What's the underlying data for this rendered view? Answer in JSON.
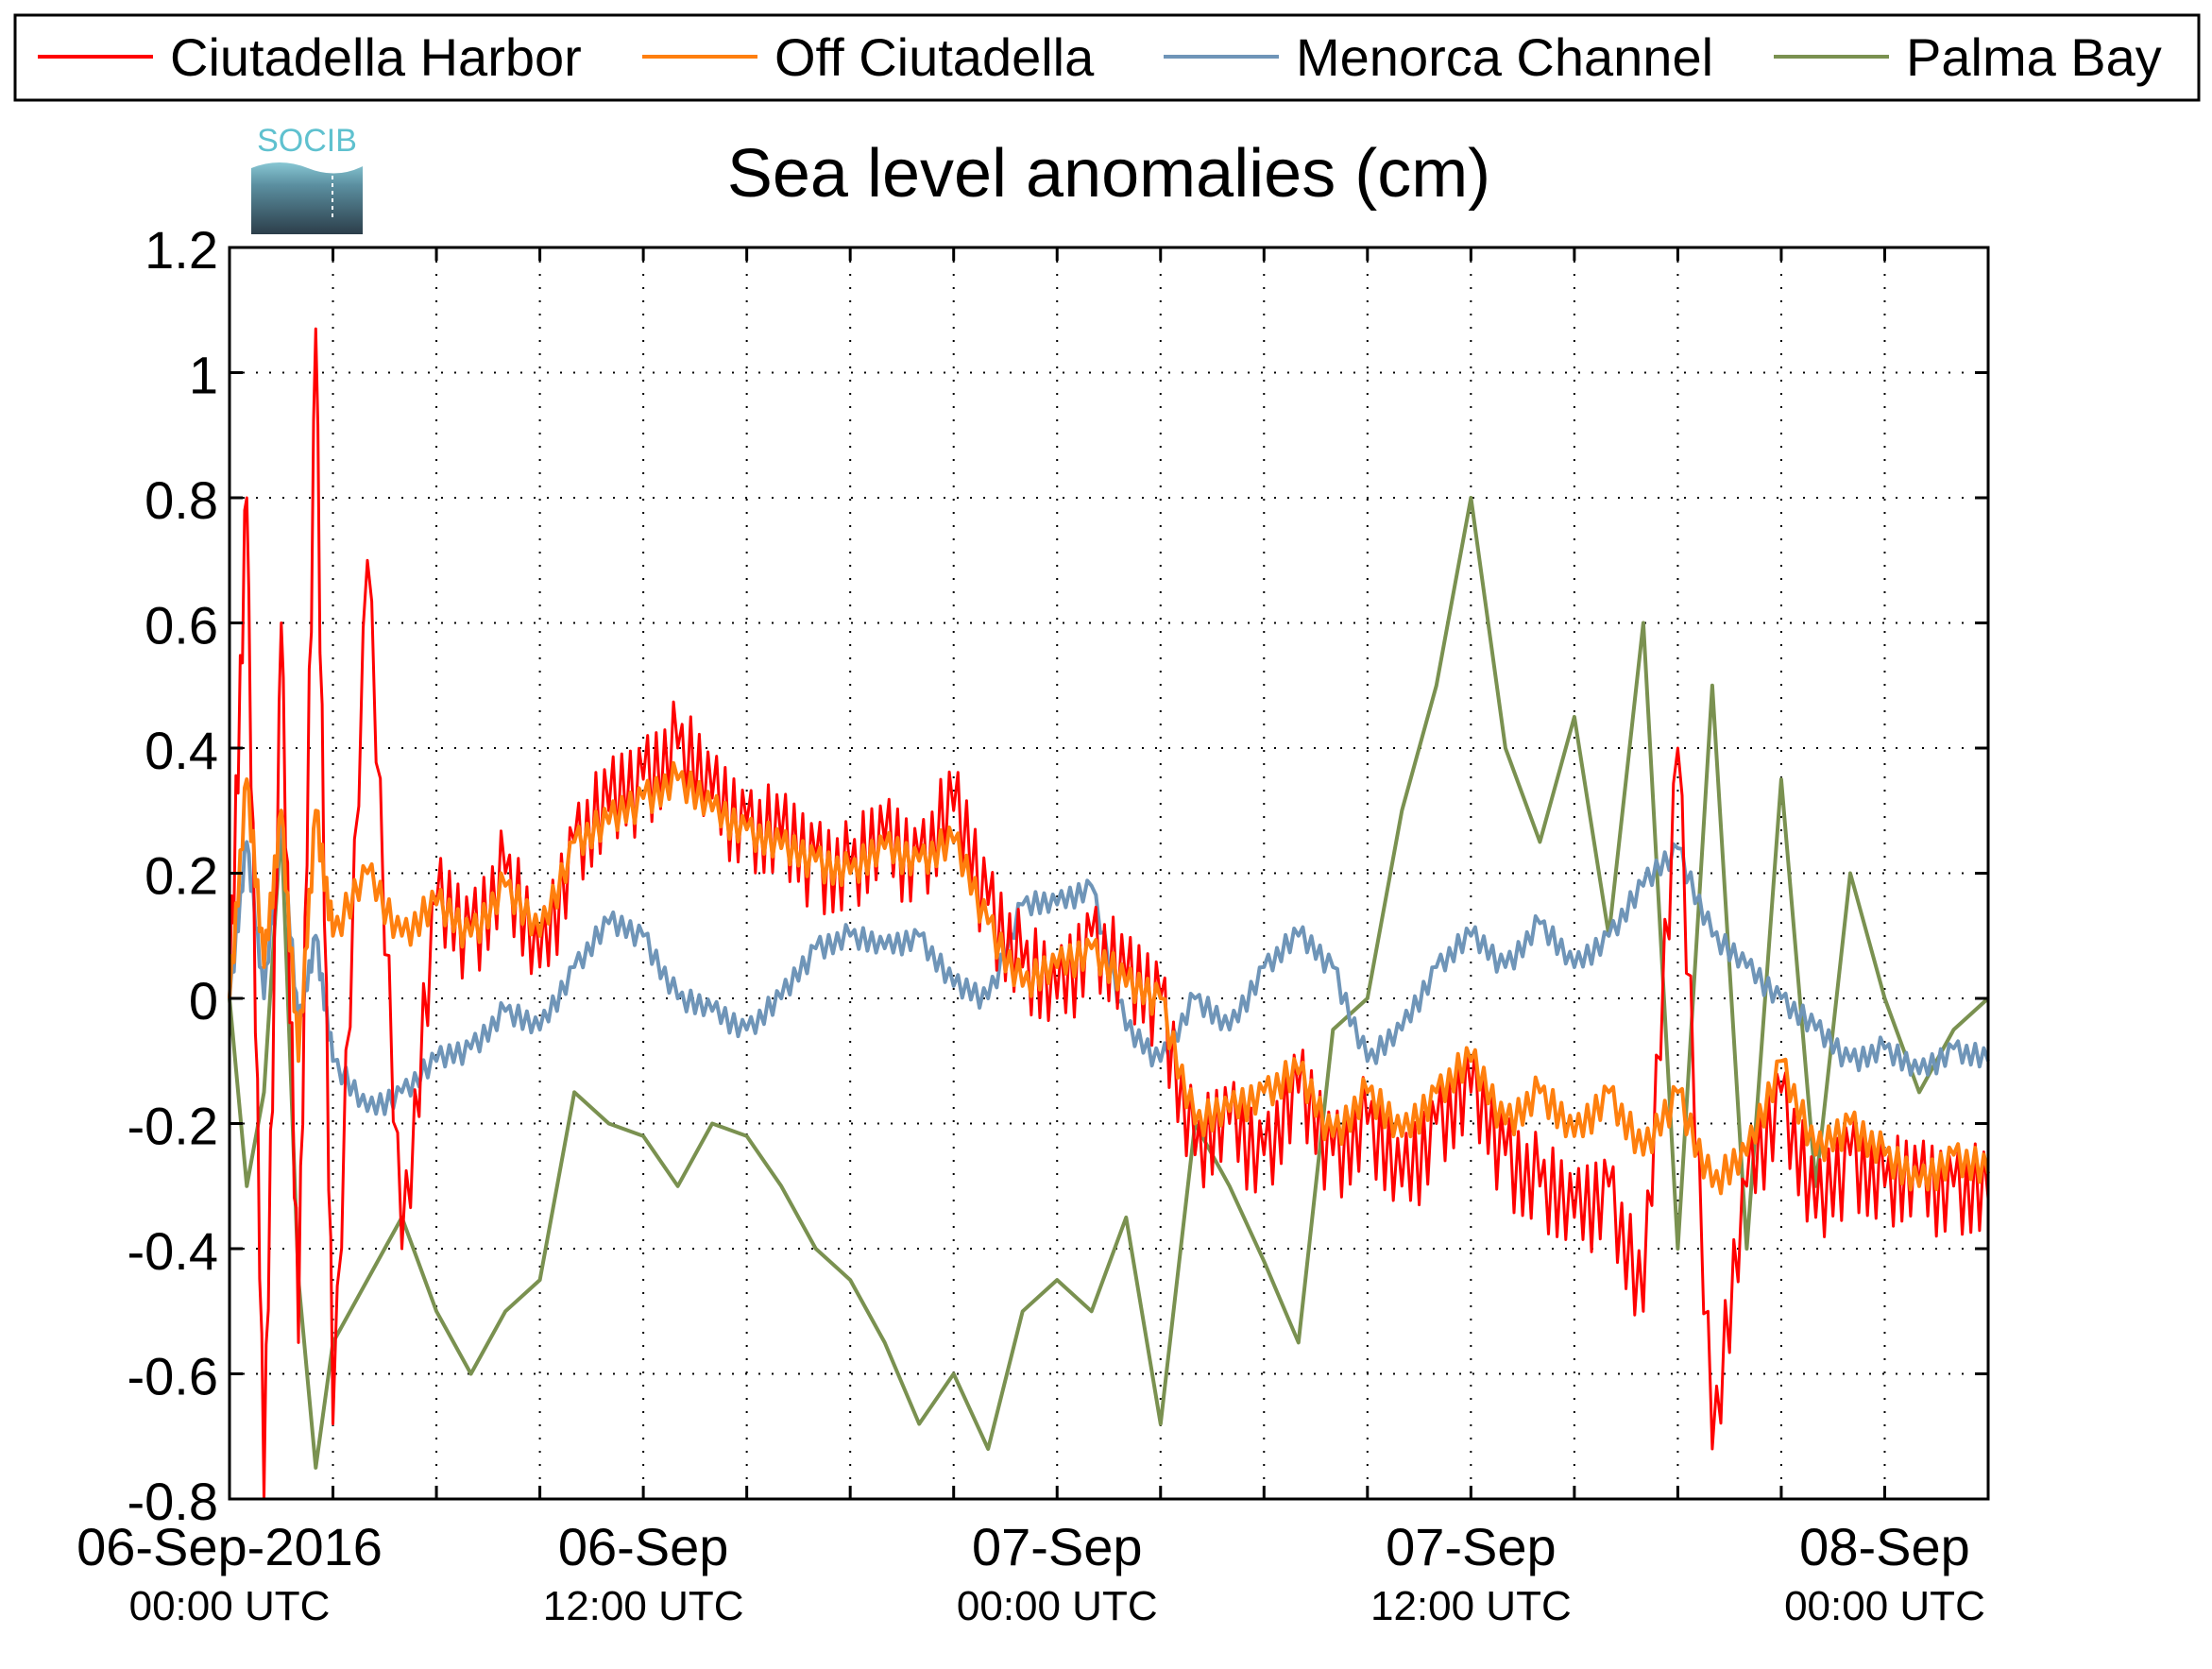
{
  "chart_data": {
    "type": "line",
    "title": "Sea level anomalies (cm)",
    "logo_text": "SOCIB",
    "xlabel": "",
    "ylabel": "",
    "ylim": [
      -0.8,
      1.2
    ],
    "y_ticks": [
      -0.8,
      -0.6,
      -0.4,
      -0.2,
      0,
      0.2,
      0.4,
      0.6,
      0.8,
      1,
      1.2
    ],
    "y_tick_labels": [
      "-0.8",
      "-0.6",
      "-0.4",
      "-0.2",
      "0",
      "0.2",
      "0.4",
      "0.6",
      "0.8",
      "1",
      "1.2"
    ],
    "xlim": [
      "2016-09-06T00:00",
      "2016-09-08T03:00"
    ],
    "x_labels": [
      {
        "x": "2016-09-06T00:00",
        "line1": "06-Sep-2016",
        "line2": "00:00 UTC"
      },
      {
        "x": "2016-09-06T12:00",
        "line1": "06-Sep",
        "line2": "12:00 UTC"
      },
      {
        "x": "2016-09-07T00:00",
        "line1": "07-Sep",
        "line2": "00:00 UTC"
      },
      {
        "x": "2016-09-07T12:00",
        "line1": "07-Sep",
        "line2": "12:00 UTC"
      },
      {
        "x": "2016-09-08T00:00",
        "line1": "08-Sep",
        "line2": "00:00 UTC"
      }
    ],
    "grid": true,
    "legend_position": "top",
    "series": [
      {
        "name": "Ciutadella Harbor",
        "color": "#ff0000",
        "x": [
          "2016-09-06T00:00",
          "2016-09-06T00:30",
          "2016-09-06T01:00",
          "2016-09-06T01:30",
          "2016-09-06T02:00",
          "2016-09-06T02:30",
          "2016-09-06T03:00",
          "2016-09-06T04:00",
          "2016-09-06T05:00",
          "2016-09-06T06:00",
          "2016-09-06T07:00",
          "2016-09-06T08:00",
          "2016-09-06T09:00",
          "2016-09-06T10:00",
          "2016-09-06T11:00",
          "2016-09-06T12:00",
          "2016-09-06T13:00",
          "2016-09-06T14:00",
          "2016-09-06T15:00",
          "2016-09-06T16:00",
          "2016-09-06T17:00",
          "2016-09-06T18:00",
          "2016-09-06T19:00",
          "2016-09-06T20:00",
          "2016-09-06T21:00",
          "2016-09-06T22:00",
          "2016-09-06T23:00",
          "2016-09-07T00:00",
          "2016-09-07T01:00",
          "2016-09-07T02:00",
          "2016-09-07T03:00",
          "2016-09-07T04:00",
          "2016-09-07T05:00",
          "2016-09-07T06:00",
          "2016-09-07T07:00",
          "2016-09-07T08:00",
          "2016-09-07T09:00",
          "2016-09-07T10:00",
          "2016-09-07T11:00",
          "2016-09-07T12:00",
          "2016-09-07T13:00",
          "2016-09-07T14:00",
          "2016-09-07T15:00",
          "2016-09-07T16:00",
          "2016-09-07T17:00",
          "2016-09-07T18:00",
          "2016-09-07T19:00",
          "2016-09-07T20:00",
          "2016-09-07T21:00",
          "2016-09-07T22:00",
          "2016-09-07T23:00",
          "2016-09-08T00:00",
          "2016-09-08T01:00",
          "2016-09-08T02:00",
          "2016-09-08T03:00"
        ],
        "y": [
          0.0,
          0.8,
          -0.8,
          0.6,
          -0.55,
          1.07,
          -0.68,
          0.7,
          -0.4,
          0.15,
          0.1,
          0.2,
          0.05,
          0.25,
          0.3,
          0.35,
          0.4,
          0.32,
          0.28,
          0.25,
          0.22,
          0.2,
          0.25,
          0.22,
          0.3,
          0.15,
          0.05,
          0.0,
          0.1,
          0.02,
          0.0,
          -0.25,
          -0.2,
          -0.25,
          -0.15,
          -0.25,
          -0.2,
          -0.3,
          -0.2,
          -0.15,
          -0.25,
          -0.3,
          -0.35,
          -0.3,
          -0.5,
          0.4,
          -0.72,
          -0.3,
          -0.15,
          -0.35,
          -0.25,
          -0.3,
          -0.3,
          -0.3,
          -0.32
        ],
        "oscillation": 0.08
      },
      {
        "name": "Off Ciutadella",
        "color": "#ff7f0e",
        "x": [
          "2016-09-06T00:00",
          "2016-09-06T00:30",
          "2016-09-06T01:00",
          "2016-09-06T01:30",
          "2016-09-06T02:00",
          "2016-09-06T02:30",
          "2016-09-06T03:00",
          "2016-09-06T04:00",
          "2016-09-06T05:00",
          "2016-09-06T06:00",
          "2016-09-06T07:00",
          "2016-09-06T08:00",
          "2016-09-06T09:00",
          "2016-09-06T10:00",
          "2016-09-06T11:00",
          "2016-09-06T12:00",
          "2016-09-06T13:00",
          "2016-09-06T14:00",
          "2016-09-06T15:00",
          "2016-09-06T16:00",
          "2016-09-06T17:00",
          "2016-09-06T18:00",
          "2016-09-06T19:00",
          "2016-09-06T20:00",
          "2016-09-06T21:00",
          "2016-09-06T22:00",
          "2016-09-06T23:00",
          "2016-09-07T00:00",
          "2016-09-07T01:00",
          "2016-09-07T02:00",
          "2016-09-07T03:00",
          "2016-09-07T04:00",
          "2016-09-07T05:00",
          "2016-09-07T06:00",
          "2016-09-07T07:00",
          "2016-09-07T08:00",
          "2016-09-07T09:00",
          "2016-09-07T10:00",
          "2016-09-07T11:00",
          "2016-09-07T12:00",
          "2016-09-07T13:00",
          "2016-09-07T14:00",
          "2016-09-07T15:00",
          "2016-09-07T16:00",
          "2016-09-07T17:00",
          "2016-09-07T18:00",
          "2016-09-07T19:00",
          "2016-09-07T20:00",
          "2016-09-07T21:00",
          "2016-09-07T22:00",
          "2016-09-07T23:00",
          "2016-09-08T00:00",
          "2016-09-08T01:00",
          "2016-09-08T02:00",
          "2016-09-08T03:00"
        ],
        "y": [
          0.0,
          0.35,
          0.05,
          0.3,
          -0.1,
          0.3,
          0.1,
          0.2,
          0.1,
          0.15,
          0.1,
          0.18,
          0.1,
          0.25,
          0.28,
          0.32,
          0.35,
          0.3,
          0.27,
          0.24,
          0.22,
          0.2,
          0.24,
          0.22,
          0.25,
          0.12,
          0.02,
          0.05,
          0.08,
          0.02,
          0.0,
          -0.2,
          -0.18,
          -0.15,
          -0.12,
          -0.22,
          -0.15,
          -0.22,
          -0.15,
          -0.1,
          -0.2,
          -0.15,
          -0.22,
          -0.15,
          -0.25,
          -0.15,
          -0.3,
          -0.25,
          -0.1,
          -0.25,
          -0.2,
          -0.25,
          -0.3,
          -0.25,
          -0.28
        ],
        "oscillation": 0.03
      },
      {
        "name": "Menorca Channel",
        "color": "#6f95b8",
        "x": [
          "2016-09-06T00:00",
          "2016-09-06T00:30",
          "2016-09-06T01:00",
          "2016-09-06T01:30",
          "2016-09-06T02:00",
          "2016-09-06T02:30",
          "2016-09-06T03:00",
          "2016-09-06T04:00",
          "2016-09-06T05:00",
          "2016-09-06T06:00",
          "2016-09-06T07:00",
          "2016-09-06T08:00",
          "2016-09-06T09:00",
          "2016-09-06T10:00",
          "2016-09-06T11:00",
          "2016-09-06T12:00",
          "2016-09-06T13:00",
          "2016-09-06T14:00",
          "2016-09-06T15:00",
          "2016-09-06T16:00",
          "2016-09-06T17:00",
          "2016-09-06T18:00",
          "2016-09-06T19:00",
          "2016-09-06T20:00",
          "2016-09-06T21:00",
          "2016-09-06T22:00",
          "2016-09-06T23:00",
          "2016-09-07T00:00",
          "2016-09-07T01:00",
          "2016-09-07T02:00",
          "2016-09-07T03:00",
          "2016-09-07T04:00",
          "2016-09-07T05:00",
          "2016-09-07T06:00",
          "2016-09-07T07:00",
          "2016-09-07T08:00",
          "2016-09-07T09:00",
          "2016-09-07T10:00",
          "2016-09-07T11:00",
          "2016-09-07T12:00",
          "2016-09-07T13:00",
          "2016-09-07T14:00",
          "2016-09-07T15:00",
          "2016-09-07T16:00",
          "2016-09-07T17:00",
          "2016-09-07T18:00",
          "2016-09-07T19:00",
          "2016-09-07T20:00",
          "2016-09-07T21:00",
          "2016-09-07T22:00",
          "2016-09-07T23:00",
          "2016-09-08T00:00",
          "2016-09-08T01:00",
          "2016-09-08T02:00",
          "2016-09-08T03:00"
        ],
        "y": [
          0.0,
          0.25,
          0.0,
          0.28,
          -0.05,
          0.1,
          -0.1,
          -0.18,
          -0.15,
          -0.1,
          -0.08,
          -0.02,
          -0.05,
          0.05,
          0.12,
          0.1,
          0.0,
          -0.02,
          -0.05,
          0.0,
          0.08,
          0.1,
          0.08,
          0.1,
          0.02,
          0.0,
          0.15,
          0.15,
          0.18,
          -0.05,
          -0.1,
          0.0,
          -0.05,
          0.05,
          0.1,
          0.05,
          -0.1,
          -0.05,
          0.05,
          0.1,
          0.05,
          0.12,
          0.05,
          0.1,
          0.18,
          0.24,
          0.1,
          0.05,
          0.0,
          -0.05,
          -0.1,
          -0.08,
          -0.12,
          -0.08,
          -0.1
        ],
        "oscillation": 0.02
      },
      {
        "name": "Palma Bay",
        "color": "#7a9150",
        "x": [
          "2016-09-06T00:00",
          "2016-09-06T00:30",
          "2016-09-06T01:00",
          "2016-09-06T01:30",
          "2016-09-06T02:00",
          "2016-09-06T02:30",
          "2016-09-06T03:00",
          "2016-09-06T04:00",
          "2016-09-06T05:00",
          "2016-09-06T06:00",
          "2016-09-06T07:00",
          "2016-09-06T08:00",
          "2016-09-06T09:00",
          "2016-09-06T10:00",
          "2016-09-06T11:00",
          "2016-09-06T12:00",
          "2016-09-06T13:00",
          "2016-09-06T14:00",
          "2016-09-06T15:00",
          "2016-09-06T16:00",
          "2016-09-06T17:00",
          "2016-09-06T18:00",
          "2016-09-06T19:00",
          "2016-09-06T20:00",
          "2016-09-06T21:00",
          "2016-09-06T22:00",
          "2016-09-06T23:00",
          "2016-09-07T00:00",
          "2016-09-07T01:00",
          "2016-09-07T02:00",
          "2016-09-07T03:00",
          "2016-09-07T04:00",
          "2016-09-07T05:00",
          "2016-09-07T06:00",
          "2016-09-07T07:00",
          "2016-09-07T08:00",
          "2016-09-07T09:00",
          "2016-09-07T10:00",
          "2016-09-07T11:00",
          "2016-09-07T12:00",
          "2016-09-07T13:00",
          "2016-09-07T14:00",
          "2016-09-07T15:00",
          "2016-09-07T16:00",
          "2016-09-07T17:00",
          "2016-09-07T18:00",
          "2016-09-07T19:00",
          "2016-09-07T20:00",
          "2016-09-07T21:00",
          "2016-09-07T22:00",
          "2016-09-07T23:00",
          "2016-09-08T00:00",
          "2016-09-08T01:00",
          "2016-09-08T02:00",
          "2016-09-08T03:00"
        ],
        "y": [
          0.0,
          -0.3,
          -0.15,
          0.28,
          -0.45,
          -0.75,
          -0.55,
          -0.45,
          -0.35,
          -0.5,
          -0.6,
          -0.5,
          -0.45,
          -0.15,
          -0.2,
          -0.22,
          -0.3,
          -0.2,
          -0.22,
          -0.3,
          -0.4,
          -0.45,
          -0.55,
          -0.68,
          -0.6,
          -0.72,
          -0.5,
          -0.45,
          -0.5,
          -0.35,
          -0.68,
          -0.2,
          -0.3,
          -0.42,
          -0.55,
          -0.05,
          0.0,
          0.3,
          0.5,
          0.8,
          0.4,
          0.25,
          0.45,
          0.1,
          0.6,
          -0.4,
          0.5,
          -0.4,
          0.35,
          -0.3,
          0.2,
          0.0,
          -0.15,
          -0.05,
          0.0
        ],
        "oscillation": 0.0
      }
    ]
  }
}
